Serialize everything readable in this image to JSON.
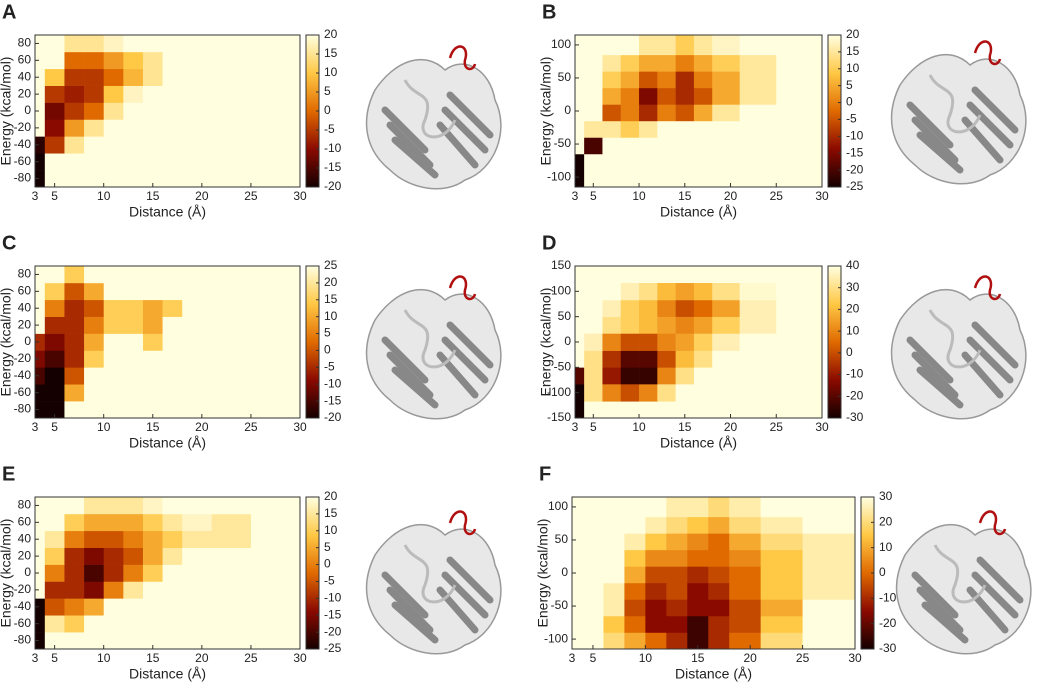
{
  "chart_data": [
    {
      "type": "heatmap",
      "panel_label": "A",
      "xlabel": "Distance (Å)",
      "ylabel": "Energy (kcal/mol)",
      "xlim": [
        3,
        30
      ],
      "xticks": [
        3,
        5,
        10,
        15,
        20,
        25,
        30
      ],
      "ylim": [
        -90,
        90
      ],
      "yticks": [
        -80,
        -60,
        -40,
        -20,
        0,
        20,
        40,
        60,
        80
      ],
      "x_bins": [
        3,
        4,
        6,
        8,
        10,
        12,
        14,
        16,
        18,
        21,
        25,
        30
      ],
      "y_bins": [
        -90,
        -70,
        -50,
        -30,
        -10,
        10,
        30,
        50,
        70,
        90
      ],
      "zlim": [
        -20,
        20
      ],
      "zticks": [
        -20,
        -15,
        -10,
        -5,
        0,
        5,
        10,
        15,
        20
      ],
      "colorscale": [
        "#140000",
        "#8b0a00",
        "#e06a00",
        "#ffc845",
        "#ffffe0"
      ],
      "z": [
        [
          -20,
          20,
          20,
          20,
          20,
          20,
          20,
          20,
          20,
          20,
          20
        ],
        [
          -20,
          20,
          20,
          20,
          20,
          20,
          20,
          20,
          20,
          20,
          20
        ],
        [
          -18,
          -5,
          15,
          20,
          20,
          20,
          20,
          20,
          20,
          20,
          20
        ],
        [
          20,
          -10,
          5,
          15,
          20,
          20,
          20,
          20,
          20,
          20,
          20
        ],
        [
          20,
          -12,
          -5,
          0,
          15,
          20,
          20,
          20,
          20,
          20,
          20
        ],
        [
          20,
          -5,
          -8,
          -5,
          10,
          18,
          20,
          20,
          20,
          20,
          20
        ],
        [
          20,
          10,
          -5,
          -5,
          0,
          8,
          15,
          20,
          20,
          20,
          20
        ],
        [
          20,
          20,
          0,
          0,
          5,
          10,
          15,
          20,
          20,
          20,
          20
        ],
        [
          20,
          20,
          15,
          15,
          18,
          20,
          20,
          20,
          20,
          20,
          20
        ]
      ]
    },
    {
      "type": "heatmap",
      "panel_label": "B",
      "xlabel": "Distance (Å)",
      "ylabel": "Energy (kcal/mol)",
      "xlim": [
        3,
        30
      ],
      "xticks": [
        3,
        5,
        10,
        15,
        20,
        25,
        30
      ],
      "ylim": [
        -115,
        115
      ],
      "yticks": [
        -100,
        -50,
        0,
        50,
        100
      ],
      "x_bins": [
        3,
        4,
        6,
        8,
        10,
        12,
        14,
        16,
        18,
        21,
        25,
        30
      ],
      "y_bins": [
        -115,
        -90,
        -65,
        -40,
        -15,
        10,
        35,
        60,
        85,
        115
      ],
      "zlim": [
        -25,
        20
      ],
      "zticks": [
        -25,
        -20,
        -15,
        -10,
        -5,
        0,
        5,
        10,
        15,
        20
      ],
      "colorscale": [
        "#140000",
        "#8b0a00",
        "#e06a00",
        "#ffc845",
        "#ffffe0"
      ],
      "z": [
        [
          -25,
          20,
          20,
          20,
          20,
          20,
          20,
          20,
          20,
          20,
          20
        ],
        [
          -25,
          20,
          20,
          20,
          20,
          20,
          20,
          20,
          20,
          20,
          20
        ],
        [
          20,
          -20,
          20,
          20,
          20,
          20,
          20,
          20,
          20,
          20,
          20
        ],
        [
          20,
          15,
          15,
          10,
          15,
          20,
          20,
          20,
          20,
          20,
          20
        ],
        [
          20,
          20,
          -5,
          0,
          -10,
          0,
          -5,
          5,
          15,
          20,
          20
        ],
        [
          20,
          20,
          5,
          0,
          -15,
          -5,
          -10,
          -5,
          5,
          15,
          20
        ],
        [
          20,
          20,
          10,
          5,
          -5,
          0,
          -10,
          0,
          5,
          15,
          20
        ],
        [
          20,
          20,
          15,
          10,
          5,
          5,
          0,
          5,
          10,
          15,
          20
        ],
        [
          20,
          20,
          20,
          20,
          15,
          15,
          10,
          15,
          18,
          20,
          20
        ]
      ]
    },
    {
      "type": "heatmap",
      "panel_label": "C",
      "xlabel": "Distance (Å)",
      "ylabel": "Energy (kcal/mol)",
      "xlim": [
        3,
        30
      ],
      "xticks": [
        3,
        5,
        10,
        15,
        20,
        25,
        30
      ],
      "ylim": [
        -90,
        90
      ],
      "yticks": [
        -80,
        -60,
        -40,
        -20,
        0,
        20,
        40,
        60,
        80
      ],
      "x_bins": [
        3,
        4,
        6,
        8,
        10,
        12,
        14,
        16,
        18,
        21,
        25,
        30
      ],
      "y_bins": [
        -90,
        -70,
        -50,
        -30,
        -10,
        10,
        30,
        50,
        70,
        90
      ],
      "zlim": [
        -20,
        25
      ],
      "zticks": [
        -20,
        -15,
        -10,
        -5,
        0,
        5,
        10,
        15,
        20,
        25
      ],
      "colorscale": [
        "#140000",
        "#8b0a00",
        "#e06a00",
        "#ffc845",
        "#ffffe0"
      ],
      "z": [
        [
          -20,
          -20,
          25,
          25,
          25,
          25,
          25,
          25,
          25,
          25,
          25
        ],
        [
          -20,
          -20,
          10,
          25,
          25,
          25,
          25,
          25,
          25,
          25,
          25
        ],
        [
          -15,
          -20,
          0,
          25,
          25,
          25,
          25,
          25,
          25,
          25,
          25
        ],
        [
          -10,
          -15,
          -5,
          15,
          25,
          25,
          25,
          25,
          25,
          25,
          25
        ],
        [
          -5,
          -10,
          -5,
          10,
          25,
          25,
          15,
          25,
          25,
          25,
          25
        ],
        [
          25,
          -5,
          -5,
          5,
          15,
          15,
          10,
          25,
          25,
          25,
          25
        ],
        [
          25,
          5,
          -5,
          0,
          15,
          15,
          10,
          15,
          25,
          25,
          25
        ],
        [
          25,
          15,
          0,
          10,
          25,
          25,
          25,
          25,
          25,
          25,
          25
        ],
        [
          25,
          25,
          15,
          25,
          25,
          25,
          25,
          25,
          25,
          25,
          25
        ]
      ]
    },
    {
      "type": "heatmap",
      "panel_label": "D",
      "xlabel": "Distance (Å)",
      "ylabel": "Energy (kcal/mol)",
      "xlim": [
        3,
        30
      ],
      "xticks": [
        3,
        5,
        10,
        15,
        20,
        25,
        30
      ],
      "ylim": [
        -150,
        150
      ],
      "yticks": [
        -150,
        -100,
        -50,
        0,
        50,
        100,
        150
      ],
      "x_bins": [
        3,
        4,
        6,
        8,
        10,
        12,
        14,
        16,
        18,
        21,
        25,
        30
      ],
      "y_bins": [
        -150,
        -117,
        -83,
        -50,
        -17,
        17,
        50,
        83,
        117,
        150
      ],
      "zlim": [
        -30,
        40
      ],
      "zticks": [
        -30,
        -20,
        -10,
        0,
        10,
        20,
        30,
        40
      ],
      "colorscale": [
        "#140000",
        "#8b0a00",
        "#e06a00",
        "#ffc845",
        "#ffffe0"
      ],
      "z": [
        [
          -30,
          40,
          40,
          40,
          40,
          40,
          40,
          40,
          40,
          40,
          40
        ],
        [
          -30,
          30,
          10,
          0,
          10,
          30,
          40,
          40,
          40,
          40,
          40
        ],
        [
          -20,
          30,
          -10,
          -25,
          -25,
          10,
          30,
          40,
          40,
          40,
          40
        ],
        [
          40,
          30,
          -5,
          -20,
          -20,
          0,
          20,
          30,
          40,
          40,
          40
        ],
        [
          40,
          35,
          10,
          0,
          0,
          10,
          15,
          25,
          35,
          40,
          40
        ],
        [
          40,
          40,
          30,
          25,
          20,
          15,
          10,
          15,
          25,
          35,
          40
        ],
        [
          40,
          40,
          35,
          25,
          20,
          10,
          0,
          5,
          15,
          35,
          40
        ],
        [
          40,
          40,
          40,
          35,
          30,
          20,
          15,
          20,
          30,
          38,
          40
        ],
        [
          40,
          40,
          40,
          40,
          40,
          40,
          40,
          40,
          40,
          40,
          40
        ]
      ]
    },
    {
      "type": "heatmap",
      "panel_label": "E",
      "xlabel": "Distance (Å)",
      "ylabel": "Energy (kcal/mol)",
      "xlim": [
        3,
        30
      ],
      "xticks": [
        3,
        5,
        10,
        15,
        20,
        25,
        30
      ],
      "ylim": [
        -90,
        90
      ],
      "yticks": [
        -80,
        -60,
        -40,
        -20,
        0,
        20,
        40,
        60,
        80
      ],
      "x_bins": [
        3,
        4,
        6,
        8,
        10,
        12,
        14,
        16,
        18,
        21,
        25,
        30
      ],
      "y_bins": [
        -90,
        -70,
        -50,
        -30,
        -10,
        10,
        30,
        50,
        70,
        90
      ],
      "zlim": [
        -25,
        20
      ],
      "zticks": [
        -25,
        -20,
        -15,
        -10,
        -5,
        0,
        5,
        10,
        15,
        20
      ],
      "colorscale": [
        "#140000",
        "#8b0a00",
        "#e06a00",
        "#ffc845",
        "#ffffe0"
      ],
      "z": [
        [
          -25,
          20,
          20,
          20,
          20,
          20,
          20,
          20,
          20,
          20,
          20
        ],
        [
          -25,
          15,
          10,
          20,
          20,
          20,
          20,
          20,
          20,
          20,
          20
        ],
        [
          -25,
          -5,
          0,
          5,
          20,
          20,
          20,
          20,
          20,
          20,
          20
        ],
        [
          20,
          -10,
          -10,
          -15,
          0,
          15,
          20,
          20,
          20,
          20,
          20
        ],
        [
          20,
          0,
          -10,
          -20,
          -10,
          0,
          10,
          20,
          20,
          20,
          20
        ],
        [
          20,
          10,
          -10,
          -15,
          -10,
          -5,
          5,
          15,
          20,
          20,
          20
        ],
        [
          20,
          15,
          0,
          -5,
          -5,
          0,
          5,
          10,
          15,
          15,
          20
        ],
        [
          20,
          20,
          10,
          5,
          5,
          5,
          10,
          15,
          18,
          15,
          20
        ],
        [
          20,
          20,
          20,
          15,
          15,
          15,
          18,
          20,
          20,
          20,
          20
        ]
      ]
    },
    {
      "type": "heatmap",
      "panel_label": "F",
      "xlabel": "Distance (Å)",
      "ylabel": "Energy (kcal/mol)",
      "xlim": [
        3,
        30
      ],
      "xticks": [
        3,
        5,
        10,
        15,
        20,
        25,
        30
      ],
      "ylim": [
        -115,
        115
      ],
      "yticks": [
        -100,
        -50,
        0,
        50,
        100
      ],
      "x_bins": [
        3,
        4,
        6,
        8,
        10,
        12,
        14,
        16,
        18,
        21,
        25,
        30
      ],
      "y_bins": [
        -115,
        -90,
        -65,
        -40,
        -15,
        10,
        35,
        60,
        85,
        115
      ],
      "zlim": [
        -30,
        30
      ],
      "zticks": [
        -30,
        -20,
        -10,
        0,
        10,
        20,
        30
      ],
      "colorscale": [
        "#140000",
        "#8b0a00",
        "#e06a00",
        "#ffc845",
        "#ffffe0"
      ],
      "z": [
        [
          30,
          30,
          20,
          10,
          0,
          -10,
          -25,
          -10,
          0,
          20,
          30
        ],
        [
          30,
          30,
          15,
          0,
          -15,
          -15,
          -25,
          -10,
          -5,
          15,
          30
        ],
        [
          30,
          30,
          25,
          -5,
          -15,
          -10,
          -15,
          -15,
          -5,
          10,
          30
        ],
        [
          30,
          30,
          25,
          0,
          -10,
          -5,
          -15,
          -10,
          0,
          15,
          25
        ],
        [
          30,
          30,
          30,
          10,
          -5,
          -5,
          -10,
          -5,
          0,
          15,
          25
        ],
        [
          30,
          30,
          30,
          15,
          5,
          5,
          0,
          0,
          5,
          15,
          25
        ],
        [
          30,
          30,
          30,
          25,
          15,
          10,
          5,
          0,
          10,
          20,
          25
        ],
        [
          30,
          30,
          30,
          30,
          25,
          20,
          15,
          10,
          20,
          25,
          30
        ],
        [
          30,
          30,
          30,
          30,
          30,
          25,
          25,
          20,
          25,
          30,
          30
        ]
      ]
    }
  ]
}
